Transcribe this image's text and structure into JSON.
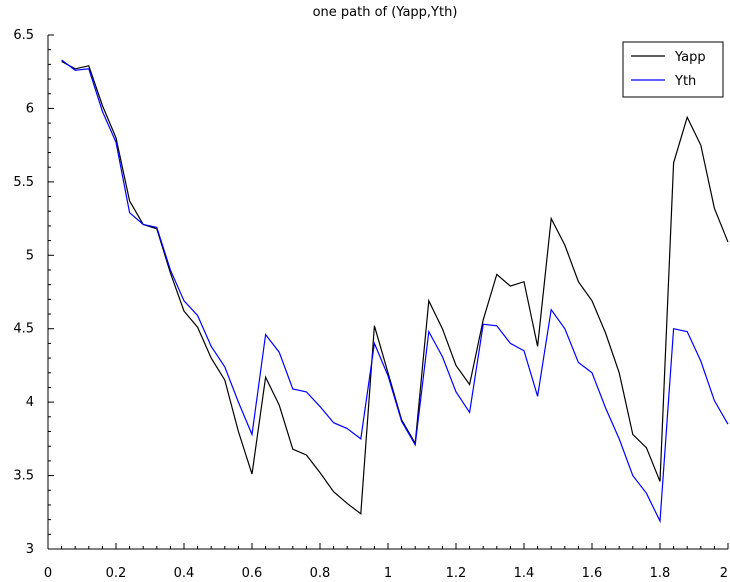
{
  "chart_data": {
    "type": "line",
    "title": "one path of (Yapp,Yth)",
    "xlabel": "",
    "ylabel": "",
    "xlim": [
      0,
      2
    ],
    "ylim": [
      3,
      6.5
    ],
    "xticks": [
      "0",
      "0.2",
      "0.4",
      "0.6",
      "0.8",
      "1",
      "1.2",
      "1.4",
      "1.6",
      "1.8",
      "2"
    ],
    "yticks": [
      "3",
      "3.5",
      "4",
      "4.5",
      "5",
      "5.5",
      "6",
      "6.5"
    ],
    "grid": false,
    "legend_position": "top-right",
    "x": [
      0.04,
      0.08,
      0.12,
      0.16,
      0.2,
      0.24,
      0.28,
      0.32,
      0.36,
      0.4,
      0.44,
      0.48,
      0.52,
      0.56,
      0.6,
      0.64,
      0.68,
      0.72,
      0.76,
      0.8,
      0.84,
      0.88,
      0.92,
      0.96,
      1.0,
      1.04,
      1.08,
      1.12,
      1.16,
      1.2,
      1.24,
      1.28,
      1.32,
      1.36,
      1.4,
      1.44,
      1.48,
      1.52,
      1.56,
      1.6,
      1.64,
      1.68,
      1.72,
      1.76,
      1.8,
      1.84,
      1.88,
      1.92,
      1.96,
      2.0
    ],
    "series": [
      {
        "name": "Yapp",
        "color": "#000000",
        "values": [
          6.32,
          6.27,
          6.29,
          6.02,
          5.8,
          5.37,
          5.21,
          5.18,
          4.88,
          4.62,
          4.51,
          4.3,
          4.15,
          3.8,
          3.51,
          4.17,
          3.98,
          3.68,
          3.64,
          3.52,
          3.39,
          3.31,
          3.24,
          4.52,
          4.2,
          3.88,
          3.72,
          4.69,
          4.5,
          4.25,
          4.12,
          4.56,
          4.87,
          4.79,
          4.82,
          4.38,
          5.25,
          5.07,
          4.82,
          4.69,
          4.47,
          4.2,
          3.78,
          3.69,
          3.46,
          5.63,
          5.94,
          5.75,
          5.32,
          5.09
        ]
      },
      {
        "name": "Yth",
        "color": "#0000ff",
        "values": [
          6.33,
          6.26,
          6.27,
          5.98,
          5.77,
          5.29,
          5.21,
          5.19,
          4.9,
          4.69,
          4.59,
          4.38,
          4.24,
          4.0,
          3.78,
          4.46,
          4.34,
          4.09,
          4.07,
          3.97,
          3.86,
          3.82,
          3.75,
          4.4,
          4.18,
          3.87,
          3.71,
          4.48,
          4.31,
          4.07,
          3.93,
          4.53,
          4.52,
          4.4,
          4.35,
          4.04,
          4.63,
          4.5,
          4.27,
          4.2,
          3.96,
          3.75,
          3.5,
          3.38,
          3.19,
          4.5,
          4.48,
          4.28,
          4.01,
          3.85
        ]
      }
    ]
  }
}
